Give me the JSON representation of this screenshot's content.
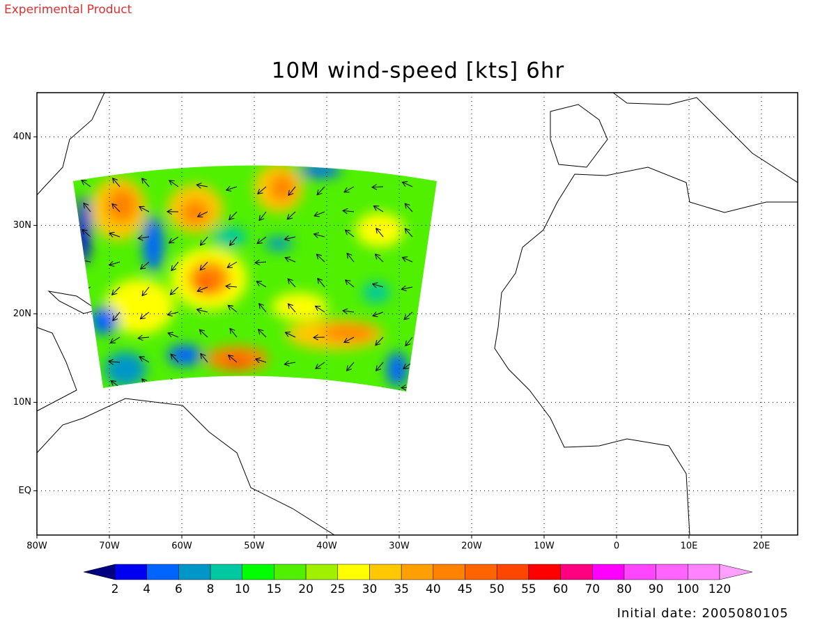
{
  "header": {
    "label": "Experimental Product"
  },
  "map": {
    "title": "10M wind-speed [kts] 6hr",
    "xlim": [
      -80,
      25
    ],
    "ylim": [
      -5,
      45
    ],
    "xticks": [
      {
        "value": -80,
        "label": "80W"
      },
      {
        "value": -70,
        "label": "70W"
      },
      {
        "value": -60,
        "label": "60W"
      },
      {
        "value": -50,
        "label": "50W"
      },
      {
        "value": -40,
        "label": "40W"
      },
      {
        "value": -30,
        "label": "30W"
      },
      {
        "value": -20,
        "label": "20W"
      },
      {
        "value": -10,
        "label": "10W"
      },
      0,
      {
        "value": 10,
        "label": "10E"
      },
      {
        "value": 20,
        "label": "20E"
      }
    ],
    "yticks": [
      {
        "value": 0,
        "label": "EQ"
      },
      {
        "value": 10,
        "label": "10N"
      },
      {
        "value": 20,
        "label": "20N"
      },
      {
        "value": 30,
        "label": "30N"
      },
      {
        "value": 40,
        "label": "40N"
      }
    ],
    "grid": true
  },
  "colorbar": {
    "levels": [
      2,
      4,
      6,
      8,
      10,
      15,
      20,
      25,
      30,
      35,
      40,
      45,
      50,
      55,
      60,
      70,
      80,
      90,
      100,
      120
    ],
    "colors": [
      "#000080",
      "#0000f0",
      "#0064ff",
      "#0096c8",
      "#00c8a0",
      "#00ff00",
      "#50f000",
      "#a0f000",
      "#ffff00",
      "#ffc800",
      "#ffa000",
      "#ff8200",
      "#ff6400",
      "#ff4600",
      "#ff0000",
      "#ff0080",
      "#ff00ff",
      "#ff46ff",
      "#ff64ff",
      "#ff82ff",
      "#ffa0ff"
    ]
  },
  "footer": {
    "label": "Initial date: 2005080105"
  }
}
